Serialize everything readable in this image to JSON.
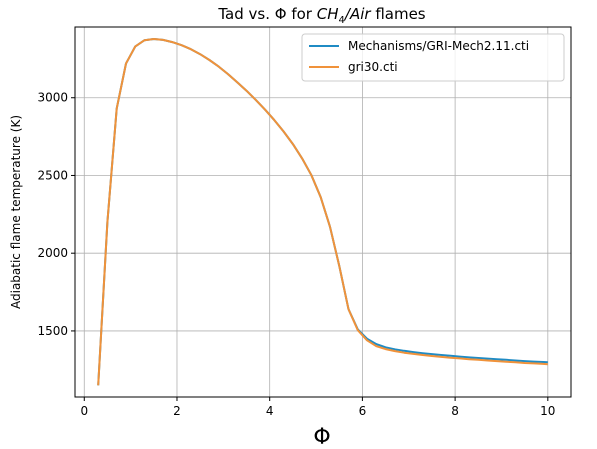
{
  "chart_data": {
    "type": "line",
    "title": {
      "prefix": "Tad vs. Φ for ",
      "species": "CH",
      "subscript": "4",
      "separator": "/",
      "oxidizer": "Air",
      "suffix": " flames"
    },
    "xlabel": "Φ",
    "ylabel": "Adiabatic flame temperature (K)",
    "xlim": [
      -0.2,
      10.5
    ],
    "ylim": [
      1075,
      3455
    ],
    "xticks": [
      0,
      2,
      4,
      6,
      8,
      10
    ],
    "xtick_labels": [
      "0",
      "2",
      "4",
      "6",
      "8",
      "10"
    ],
    "yticks": [
      1500,
      2000,
      2500,
      3000
    ],
    "ytick_labels": [
      "1500",
      "2000",
      "2500",
      "3000"
    ],
    "grid": true,
    "legend_position": "top-right",
    "series": [
      {
        "name": "Mechanisms/GRI-Mech2.11.cti",
        "color": "#1f8bc4",
        "x": [
          0.3,
          0.5,
          0.7,
          0.9,
          1.1,
          1.3,
          1.5,
          1.7,
          1.9,
          2.1,
          2.3,
          2.5,
          2.7,
          2.9,
          3.1,
          3.3,
          3.5,
          3.7,
          3.9,
          4.1,
          4.3,
          4.5,
          4.7,
          4.9,
          5.1,
          5.3,
          5.5,
          5.7,
          5.9,
          6.1,
          6.3,
          6.5,
          6.7,
          6.9,
          7.1,
          7.3,
          7.5,
          7.7,
          7.9,
          8.1,
          8.3,
          8.5,
          8.7,
          8.9,
          9.1,
          9.3,
          9.5,
          9.7,
          9.9,
          10.0
        ],
        "y": [
          1150,
          2200,
          2930,
          3220,
          3330,
          3370,
          3378,
          3372,
          3358,
          3338,
          3312,
          3280,
          3243,
          3200,
          3152,
          3100,
          3045,
          2986,
          2923,
          2856,
          2783,
          2702,
          2610,
          2502,
          2360,
          2170,
          1920,
          1640,
          1510,
          1450,
          1415,
          1395,
          1382,
          1372,
          1364,
          1357,
          1351,
          1345,
          1340,
          1335,
          1330,
          1326,
          1322,
          1318,
          1314,
          1310,
          1306,
          1303,
          1300,
          1298
        ]
      },
      {
        "name": "gri30.cti",
        "color": "#f0923a",
        "x": [
          0.3,
          0.5,
          0.7,
          0.9,
          1.1,
          1.3,
          1.5,
          1.7,
          1.9,
          2.1,
          2.3,
          2.5,
          2.7,
          2.9,
          3.1,
          3.3,
          3.5,
          3.7,
          3.9,
          4.1,
          4.3,
          4.5,
          4.7,
          4.9,
          5.1,
          5.3,
          5.5,
          5.7,
          5.9,
          6.1,
          6.3,
          6.5,
          6.7,
          6.9,
          7.1,
          7.3,
          7.5,
          7.7,
          7.9,
          8.1,
          8.3,
          8.5,
          8.7,
          8.9,
          9.1,
          9.3,
          9.5,
          9.7,
          9.9,
          10.0
        ],
        "y": [
          1150,
          2200,
          2930,
          3220,
          3330,
          3370,
          3378,
          3372,
          3358,
          3338,
          3312,
          3280,
          3243,
          3200,
          3152,
          3100,
          3045,
          2986,
          2923,
          2856,
          2783,
          2702,
          2610,
          2502,
          2360,
          2170,
          1920,
          1640,
          1505,
          1440,
          1402,
          1383,
          1370,
          1360,
          1352,
          1345,
          1339,
          1333,
          1328,
          1323,
          1318,
          1314,
          1310,
          1306,
          1302,
          1298,
          1294,
          1291,
          1288,
          1286
        ]
      }
    ]
  }
}
